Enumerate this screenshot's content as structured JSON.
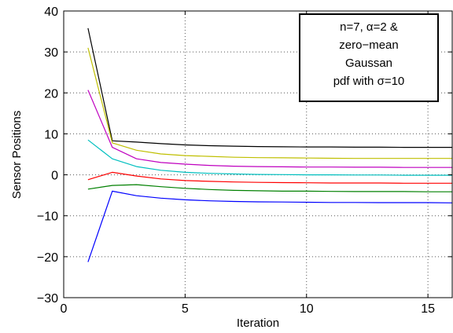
{
  "chart_data": {
    "type": "line",
    "xlabel": "Iteration",
    "ylabel": "Sensor Positions",
    "xlim": [
      0,
      16
    ],
    "ylim": [
      -30,
      40
    ],
    "xticks": [
      0,
      5,
      10,
      15
    ],
    "yticks": [
      -30,
      -20,
      -10,
      0,
      10,
      20,
      30,
      40
    ],
    "grid": true,
    "annotation": {
      "position": "top-right",
      "lines": [
        "n=7, α=2 &",
        "zero−mean",
        "Gaussan",
        "pdf with σ=10"
      ]
    },
    "x": [
      1,
      2,
      3,
      4,
      5,
      6,
      7,
      8,
      9,
      10,
      11,
      12,
      13,
      14,
      15,
      16
    ],
    "series": [
      {
        "color": "#000000",
        "values": [
          35.8,
          8.3,
          8.0,
          7.6,
          7.3,
          7.1,
          7.0,
          6.9,
          6.85,
          6.8,
          6.8,
          6.75,
          6.75,
          6.7,
          6.7,
          6.7
        ]
      },
      {
        "color": "#bfbf00",
        "values": [
          31.0,
          7.8,
          6.0,
          5.1,
          4.7,
          4.5,
          4.3,
          4.2,
          4.15,
          4.1,
          4.05,
          4.0,
          4.0,
          4.0,
          4.0,
          4.0
        ]
      },
      {
        "color": "#bf00bf",
        "values": [
          20.7,
          6.7,
          3.9,
          3.0,
          2.6,
          2.3,
          2.1,
          2.0,
          1.95,
          1.9,
          1.9,
          1.85,
          1.85,
          1.8,
          1.8,
          1.8
        ]
      },
      {
        "color": "#00bfbf",
        "values": [
          8.5,
          3.9,
          2.0,
          1.1,
          0.6,
          0.35,
          0.2,
          0.1,
          0.05,
          0.0,
          0.0,
          -0.05,
          -0.05,
          -0.1,
          -0.1,
          -0.1
        ]
      },
      {
        "color": "#ff0000",
        "values": [
          -1.2,
          0.6,
          -0.3,
          -1.0,
          -1.4,
          -1.6,
          -1.75,
          -1.85,
          -1.9,
          -1.95,
          -2.0,
          -2.0,
          -2.0,
          -2.05,
          -2.05,
          -2.05
        ]
      },
      {
        "color": "#008000",
        "values": [
          -3.5,
          -2.6,
          -2.4,
          -2.9,
          -3.3,
          -3.6,
          -3.8,
          -3.9,
          -4.0,
          -4.0,
          -4.05,
          -4.1,
          -4.1,
          -4.1,
          -4.15,
          -4.15
        ]
      },
      {
        "color": "#0000ff",
        "values": [
          -21.3,
          -4.0,
          -5.1,
          -5.7,
          -6.1,
          -6.35,
          -6.5,
          -6.6,
          -6.65,
          -6.7,
          -6.75,
          -6.75,
          -6.8,
          -6.8,
          -6.8,
          -6.85
        ]
      }
    ]
  }
}
